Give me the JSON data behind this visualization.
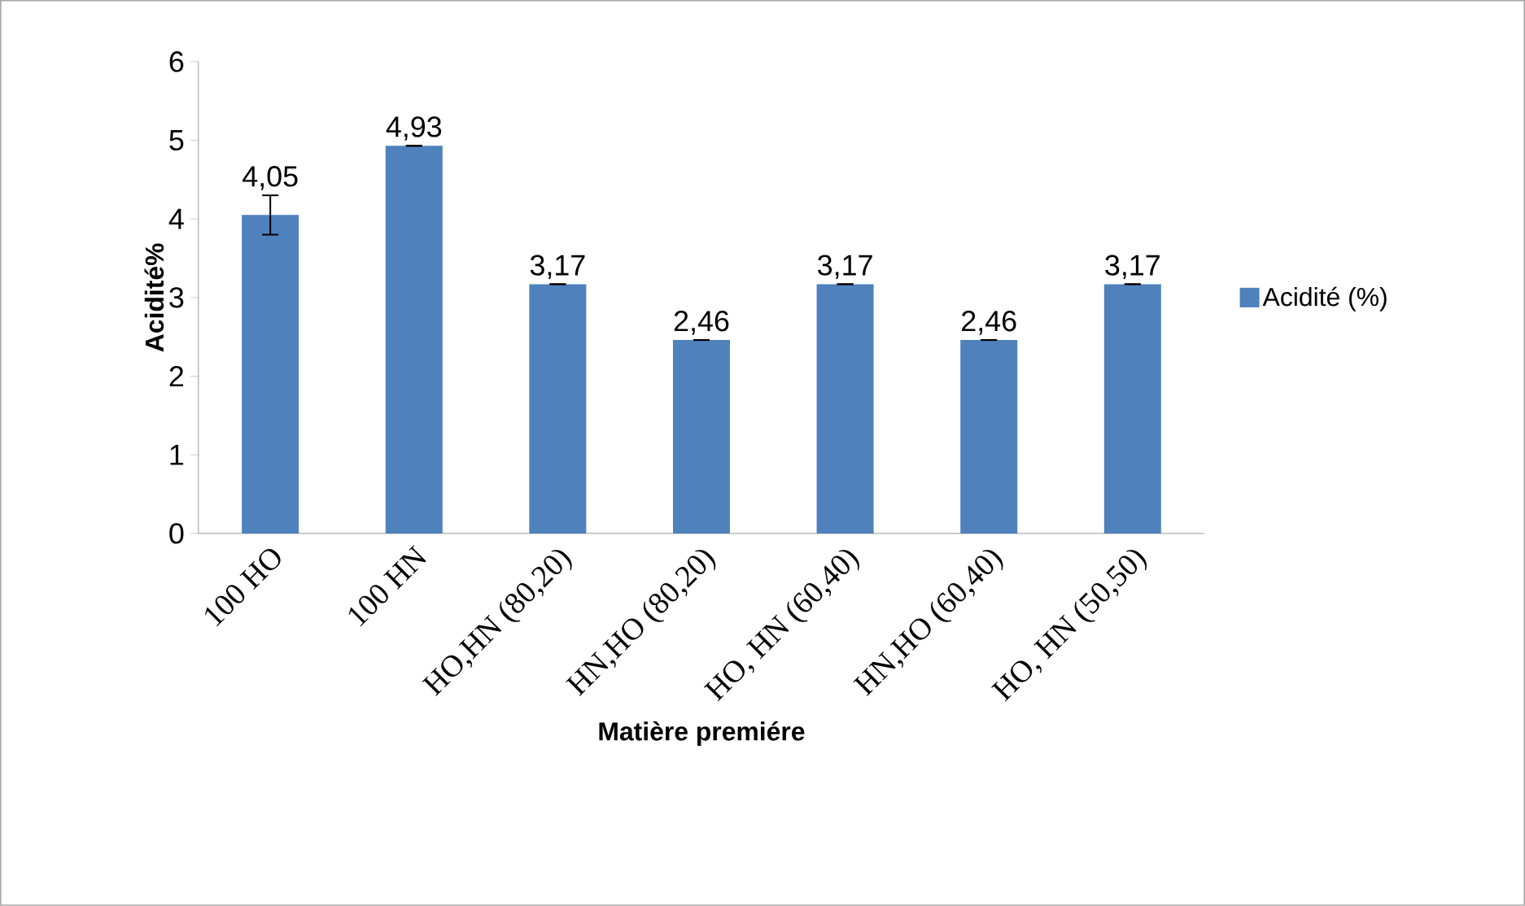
{
  "chart_data": {
    "type": "bar",
    "xlabel": "Matière premiére",
    "ylabel": "Acidité%",
    "categories": [
      "100 HO",
      "100 HN",
      "HO,HN (80,20)",
      "HN,HO (80,20)",
      "HO, HN (60,40)",
      "HN,HO (60,40)",
      "HO, HN (50,50)"
    ],
    "series": [
      {
        "name": "Acidité (%)",
        "color": "#4f81bd",
        "values": [
          4.05,
          4.93,
          3.17,
          2.46,
          3.17,
          2.46,
          3.17
        ],
        "errors": [
          0.25,
          0,
          0,
          0,
          0,
          0,
          0
        ],
        "value_labels": [
          "4,05",
          "4,93",
          "3,17",
          "2,46",
          "3,17",
          "2,46",
          "3,17"
        ]
      }
    ],
    "ylim": [
      0,
      6
    ],
    "yticks": [
      0,
      1,
      2,
      3,
      4,
      5,
      6
    ],
    "legend": "right",
    "grid": false
  }
}
